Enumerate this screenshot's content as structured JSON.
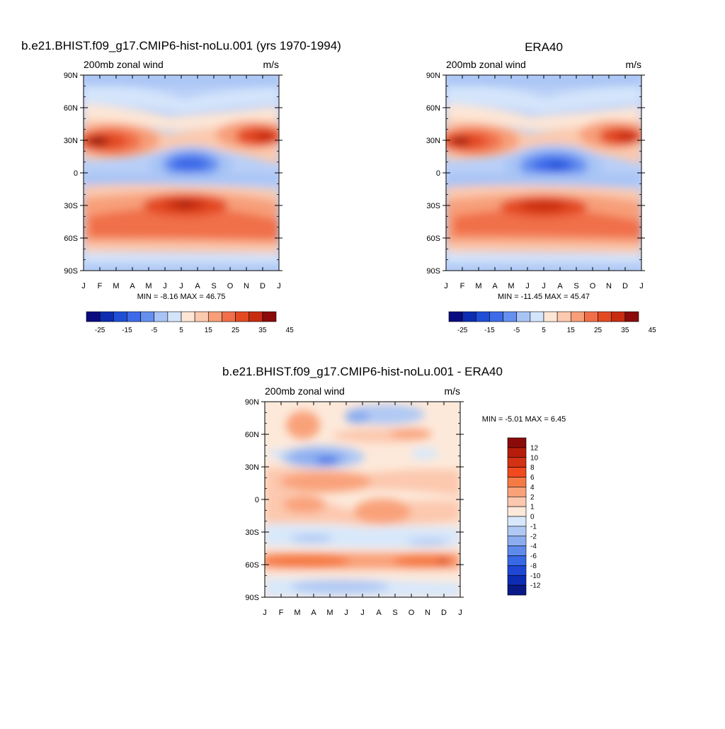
{
  "panels": [
    {
      "id": "model",
      "title": "b.e21.BHIST.f09_g17.CMIP6-hist-noLu.001 (yrs 1970-1994)",
      "left_label": "200mb zonal wind",
      "right_label": "m/s",
      "stats": "MIN =  -8.16 MAX =  46.75",
      "x_ticks": [
        "J",
        "F",
        "M",
        "A",
        "M",
        "J",
        "J",
        "A",
        "S",
        "O",
        "N",
        "D",
        "J"
      ],
      "y_ticks": [
        "90N",
        "60N",
        "30N",
        "0",
        "30S",
        "60S",
        "90S"
      ]
    },
    {
      "id": "obs",
      "title": "ERA40",
      "left_label": "200mb zonal wind",
      "right_label": "m/s",
      "stats": "MIN = -11.45 MAX =  45.47",
      "x_ticks": [
        "J",
        "F",
        "M",
        "A",
        "M",
        "J",
        "J",
        "A",
        "S",
        "O",
        "N",
        "D",
        "J"
      ],
      "y_ticks": [
        "90N",
        "60N",
        "30N",
        "0",
        "30S",
        "60S",
        "90S"
      ]
    },
    {
      "id": "diff",
      "title": "b.e21.BHIST.f09_g17.CMIP6-hist-noLu.001 - ERA40",
      "left_label": "200mb zonal wind",
      "right_label": "m/s",
      "stats": "MIN =  -5.01 MAX =   6.45",
      "x_ticks": [
        "J",
        "F",
        "M",
        "A",
        "M",
        "J",
        "J",
        "A",
        "S",
        "O",
        "N",
        "D",
        "J"
      ],
      "y_ticks": [
        "90N",
        "60N",
        "30N",
        "0",
        "30S",
        "60S",
        "90S"
      ]
    }
  ],
  "colorbars": {
    "horizontal_labels": [
      "-25",
      "-15",
      "-5",
      "5",
      "15",
      "25",
      "35",
      "45"
    ],
    "vertical_labels": [
      "12",
      "10",
      "8",
      "6",
      "4",
      "2",
      "1",
      "0",
      "-1",
      "-2",
      "-4",
      "-6",
      "-8",
      "-10",
      "-12"
    ],
    "colors": [
      "#0a0a80",
      "#0c2db0",
      "#1f4fd6",
      "#3d6ae8",
      "#6590f0",
      "#a8c4f5",
      "#d4e5fb",
      "#fde6d6",
      "#fbc9ae",
      "#f79f79",
      "#f06f48",
      "#e34a22",
      "#c82c10",
      "#8b0a0a"
    ],
    "diff_colors": [
      "#8b0a0a",
      "#b51d0a",
      "#d33214",
      "#f04a1e",
      "#f57a45",
      "#f9a27a",
      "#fcc8ae",
      "#fde9da",
      "#d8e8fb",
      "#b0c9f4",
      "#8caef0",
      "#5f8aeb",
      "#3768e6",
      "#1f47d4",
      "#0d2cb4",
      "#071a86"
    ]
  },
  "chart_data": [
    {
      "type": "heatmap",
      "title": "b.e21.BHIST.f09_g17.CMIP6-hist-noLu.001 (yrs 1970-1994)",
      "variable": "200mb zonal wind",
      "units": "m/s",
      "x": [
        "J",
        "F",
        "M",
        "A",
        "M",
        "J",
        "J",
        "A",
        "S",
        "O",
        "N",
        "D",
        "J"
      ],
      "y": [
        "90N",
        "60N",
        "30N",
        "0",
        "30S",
        "60S",
        "90S"
      ],
      "ylim": [
        -90,
        90
      ],
      "min": -8.16,
      "max": 46.75,
      "levels": [
        -30,
        -25,
        -20,
        -15,
        -10,
        -5,
        0,
        5,
        10,
        15,
        20,
        25,
        30,
        35,
        40,
        45,
        50
      ]
    },
    {
      "type": "heatmap",
      "title": "ERA40",
      "variable": "200mb zonal wind",
      "units": "m/s",
      "x": [
        "J",
        "F",
        "M",
        "A",
        "M",
        "J",
        "J",
        "A",
        "S",
        "O",
        "N",
        "D",
        "J"
      ],
      "y": [
        "90N",
        "60N",
        "30N",
        "0",
        "30S",
        "60S",
        "90S"
      ],
      "ylim": [
        -90,
        90
      ],
      "min": -11.45,
      "max": 45.47,
      "levels": [
        -30,
        -25,
        -20,
        -15,
        -10,
        -5,
        0,
        5,
        10,
        15,
        20,
        25,
        30,
        35,
        40,
        45,
        50
      ]
    },
    {
      "type": "heatmap",
      "title": "b.e21.BHIST.f09_g17.CMIP6-hist-noLu.001 - ERA40",
      "variable": "200mb zonal wind",
      "units": "m/s",
      "x": [
        "J",
        "F",
        "M",
        "A",
        "M",
        "J",
        "J",
        "A",
        "S",
        "O",
        "N",
        "D",
        "J"
      ],
      "y": [
        "90N",
        "60N",
        "30N",
        "0",
        "30S",
        "60S",
        "90S"
      ],
      "ylim": [
        -90,
        90
      ],
      "min": -5.01,
      "max": 6.45,
      "levels": [
        -12,
        -10,
        -8,
        -6,
        -4,
        -2,
        -1,
        0,
        1,
        2,
        4,
        6,
        8,
        10,
        12
      ]
    }
  ]
}
